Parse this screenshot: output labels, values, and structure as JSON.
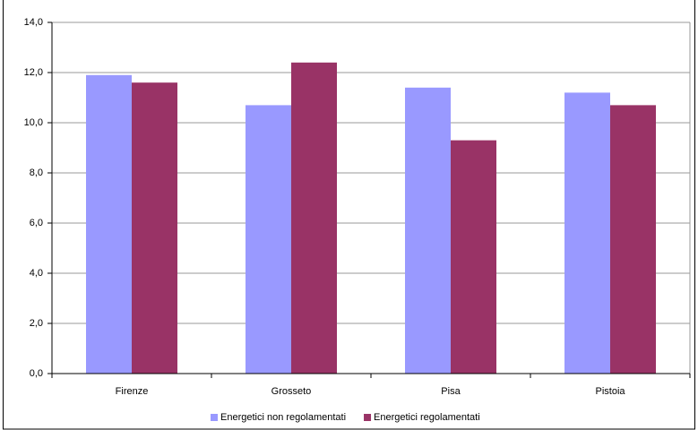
{
  "chart_data": {
    "type": "bar",
    "categories": [
      "Firenze",
      "Grosseto",
      "Pisa",
      "Pistoia"
    ],
    "series": [
      {
        "name": "Energetici non regolamentati",
        "color": "#9999ff",
        "values": [
          11.9,
          10.7,
          11.4,
          11.2
        ]
      },
      {
        "name": "Energetici regolamentati",
        "color": "#993366",
        "values": [
          11.6,
          12.4,
          9.3,
          10.7
        ]
      }
    ],
    "ylim": [
      0,
      14
    ],
    "yticks": [
      {
        "value": 0,
        "label": "0,0"
      },
      {
        "value": 2,
        "label": "2,0"
      },
      {
        "value": 4,
        "label": "4,0"
      },
      {
        "value": 6,
        "label": "6,0"
      },
      {
        "value": 8,
        "label": "8,0"
      },
      {
        "value": 10,
        "label": "10,0"
      },
      {
        "value": 12,
        "label": "12,0"
      },
      {
        "value": 14,
        "label": "14,0"
      }
    ],
    "grid": true,
    "legend": "bottom"
  }
}
